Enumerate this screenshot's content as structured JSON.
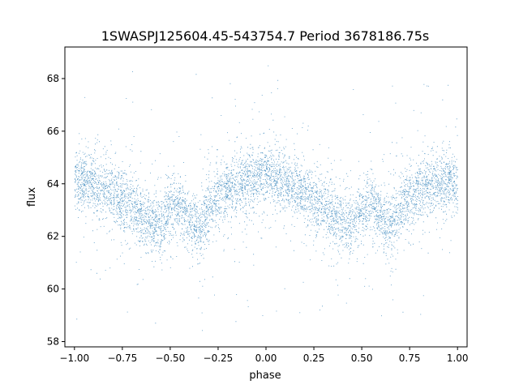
{
  "chart_data": {
    "type": "scatter",
    "title": "1SWASPJ125604.45-543754.7 Period 3678186.75s",
    "xlabel": "phase",
    "ylabel": "flux",
    "xlim": [
      -1.05,
      1.05
    ],
    "ylim": [
      57.8,
      69.2
    ],
    "xticks": [
      -1.0,
      -0.75,
      -0.5,
      -0.25,
      0.0,
      0.25,
      0.5,
      0.75,
      1.0
    ],
    "xtick_labels": [
      "−1.00",
      "−0.75",
      "−0.50",
      "−0.25",
      "0.00",
      "0.25",
      "0.50",
      "0.75",
      "1.00"
    ],
    "yticks": [
      58,
      60,
      62,
      64,
      66,
      68
    ],
    "ytick_labels": [
      "58",
      "60",
      "62",
      "64",
      "66",
      "68"
    ],
    "grid": false,
    "marker_color": "#1f77b4",
    "phase_range": [
      -1.0,
      1.0
    ],
    "flux_range": [
      58.3,
      68.7
    ],
    "series": [
      {
        "x": [
          -1.0,
          -0.95,
          -0.9,
          -0.85,
          -0.8,
          -0.75,
          -0.7,
          -0.65,
          -0.6,
          -0.55,
          -0.5,
          -0.45,
          -0.4,
          -0.35,
          -0.3,
          -0.25,
          -0.2,
          -0.15,
          -0.1,
          -0.05,
          0.0,
          0.05,
          0.1,
          0.15,
          0.2,
          0.25,
          0.3,
          0.35,
          0.4,
          0.45,
          0.5,
          0.55,
          0.6,
          0.65,
          0.7,
          0.75,
          0.8,
          0.85,
          0.9,
          0.95,
          1.0
        ],
        "y": [
          64.0,
          64.2,
          64.0,
          63.8,
          63.6,
          63.4,
          63.2,
          62.8,
          62.6,
          62.4,
          63.0,
          63.2,
          62.6,
          62.4,
          63.0,
          63.5,
          63.8,
          64.0,
          64.1,
          64.2,
          64.3,
          64.2,
          64.0,
          63.8,
          63.6,
          63.4,
          63.2,
          62.8,
          62.6,
          62.4,
          63.0,
          63.2,
          62.6,
          62.4,
          63.0,
          63.5,
          63.8,
          64.0,
          64.1,
          64.2,
          64.0
        ]
      }
    ]
  }
}
